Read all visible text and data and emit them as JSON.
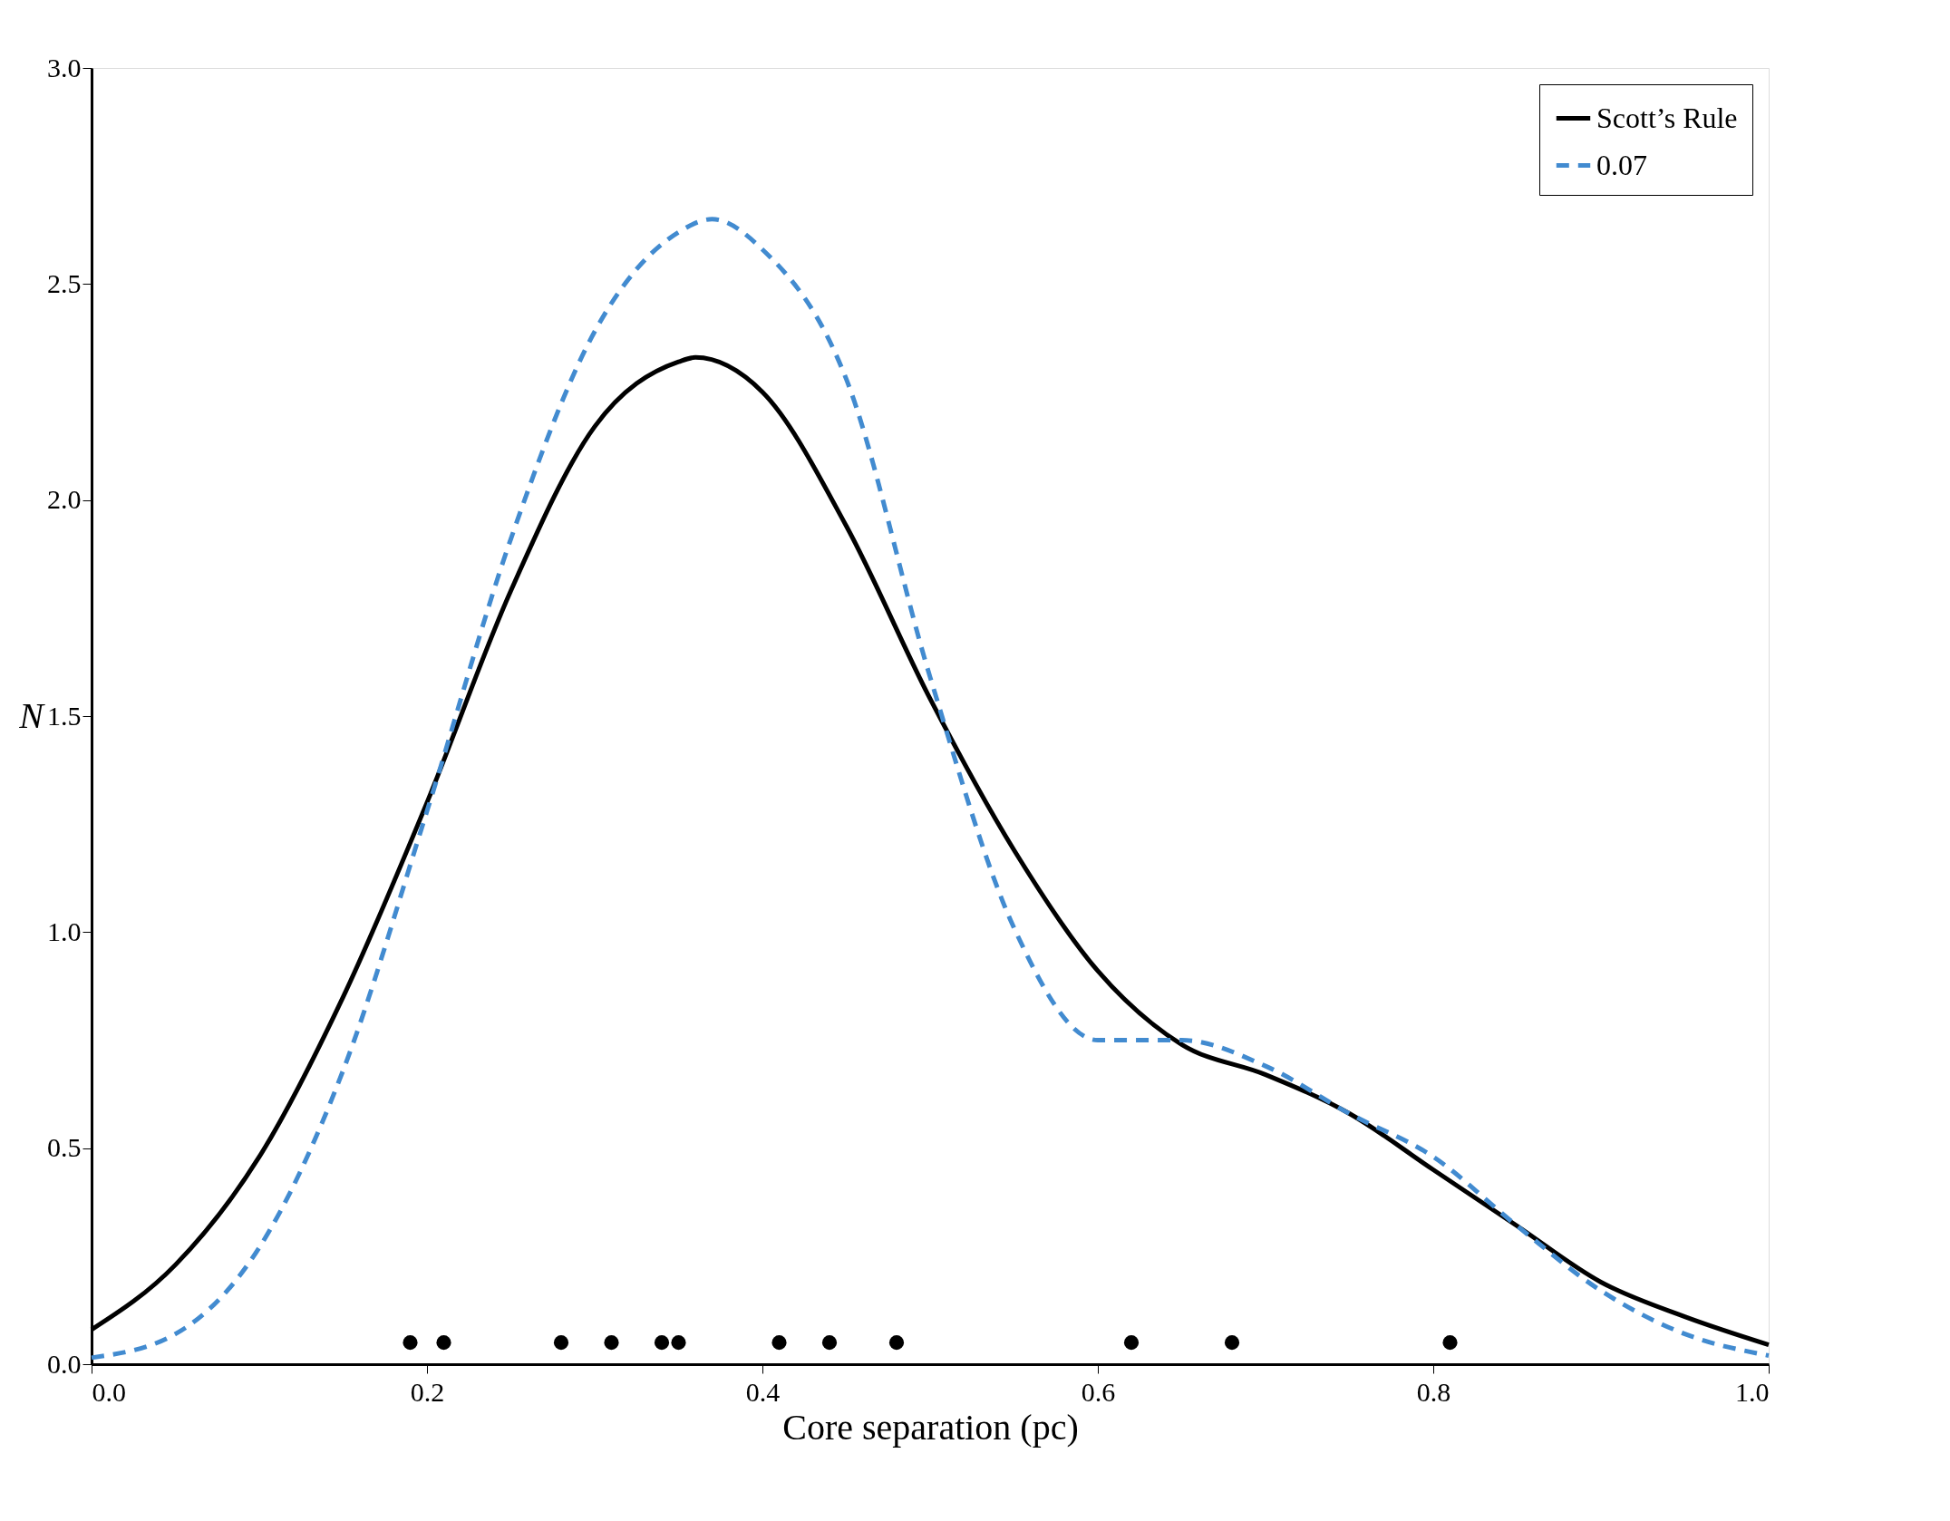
{
  "chart_data": {
    "type": "line",
    "xlabel": "Core separation (pc)",
    "ylabel": "N",
    "xlim": [
      0,
      1
    ],
    "ylim": [
      0,
      3
    ],
    "xticks": [
      {
        "value": 0,
        "label": "0.0"
      },
      0.2,
      0.4,
      0.6,
      0.8,
      {
        "value": 1,
        "label": "1.0"
      }
    ],
    "yticks": [
      {
        "value": 0,
        "label": "0.0"
      },
      0.5,
      {
        "value": 1,
        "label": "1.0"
      },
      1.5,
      {
        "value": 2,
        "label": "2.0"
      },
      2.5,
      {
        "value": 3,
        "label": "3.0"
      }
    ],
    "legend": "top right",
    "grid": false,
    "series": [
      {
        "name": "Scott’s Rule",
        "color": "#000000",
        "line_style": "solid",
        "x": [
          0,
          0.05,
          0.1,
          0.15,
          0.2,
          0.25,
          0.3,
          0.35,
          0.36,
          0.4,
          0.45,
          0.5,
          0.55,
          0.6,
          0.65,
          0.7,
          0.75,
          0.8,
          0.85,
          0.9,
          0.95,
          1.0
        ],
        "values": [
          0.08,
          0.23,
          0.48,
          0.85,
          1.3,
          1.79,
          2.17,
          2.32,
          2.33,
          2.25,
          1.94,
          1.54,
          1.19,
          0.91,
          0.74,
          0.67,
          0.58,
          0.45,
          0.32,
          0.19,
          0.11,
          0.045
        ]
      },
      {
        "name": "0.07",
        "color": "#428bd0",
        "line_style": "dashed",
        "x": [
          0,
          0.05,
          0.1,
          0.15,
          0.2,
          0.25,
          0.3,
          0.35,
          0.37,
          0.4,
          0.45,
          0.5,
          0.55,
          0.6,
          0.65,
          0.7,
          0.75,
          0.8,
          0.85,
          0.9,
          0.95,
          1.0
        ],
        "values": [
          0.015,
          0.07,
          0.27,
          0.68,
          1.28,
          1.91,
          2.39,
          2.62,
          2.65,
          2.58,
          2.28,
          1.59,
          1.01,
          0.75,
          0.75,
          0.69,
          0.58,
          0.48,
          0.32,
          0.17,
          0.07,
          0.02
        ]
      },
      {
        "type": "scatter",
        "color": "#000000",
        "marker": "circle",
        "x": [
          0.19,
          0.21,
          0.28,
          0.31,
          0.34,
          0.35,
          0.41,
          0.44,
          0.48,
          0.62,
          0.68,
          0.81
        ],
        "values": [
          0.05,
          0.05,
          0.05,
          0.05,
          0.05,
          0.05,
          0.05,
          0.05,
          0.05,
          0.05,
          0.05,
          0.05
        ]
      }
    ]
  }
}
